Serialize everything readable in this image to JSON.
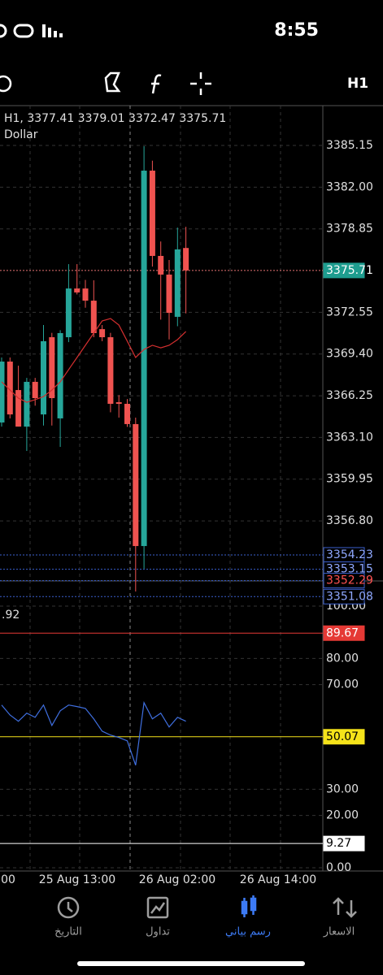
{
  "status_bar": {
    "time": "8:55"
  },
  "toolbar": {
    "timeframe": "H1"
  },
  "chart": {
    "header": "H1, 3377.41 3379.01 3372.47 3375.71",
    "symbol": "Dollar",
    "ylim": [
      3351.16,
      3388.16
    ],
    "yticks": [
      3385.15,
      {
        "value": 3382.0,
        "label": "3382.00"
      },
      3378.85,
      3372.55,
      {
        "value": 3369.4,
        "label": "3369.40"
      },
      3366.25,
      {
        "value": 3363.1,
        "label": "3363.10"
      },
      3359.95,
      {
        "value": 3356.8,
        "label": "3356.80"
      }
    ],
    "up_color": "#26a69a",
    "down_color": "#ef5350",
    "ma_color": "#d32f2f",
    "candles": [
      {
        "open": 3364.23,
        "high": 3369.14,
        "low": 3363.92,
        "close": 3368.83
      },
      {
        "open": 3368.83,
        "high": 3369.14,
        "low": 3364.54,
        "close": 3364.84
      },
      {
        "open": 3366.68,
        "high": 3368.52,
        "low": 3363.92,
        "close": 3363.92
      },
      {
        "open": 3363.92,
        "high": 3367.6,
        "low": 3362.08,
        "close": 3367.3
      },
      {
        "open": 3367.3,
        "high": 3367.6,
        "low": 3365.5,
        "close": 3366.07
      },
      {
        "open": 3364.84,
        "high": 3371.59,
        "low": 3364.0,
        "close": 3370.37
      },
      {
        "open": 3370.67,
        "high": 3371.0,
        "low": 3364.0,
        "close": 3366.07
      },
      {
        "open": 3364.54,
        "high": 3371.2,
        "low": 3362.39,
        "close": 3370.98
      },
      {
        "open": 3370.67,
        "high": 3376.19,
        "low": 3370.3,
        "close": 3374.35
      },
      {
        "open": 3374.35,
        "high": 3376.19,
        "low": 3373.9,
        "close": 3374.05
      },
      {
        "open": 3374.35,
        "high": 3375.0,
        "low": 3372.9,
        "close": 3373.43
      },
      {
        "open": 3373.43,
        "high": 3374.97,
        "low": 3370.67,
        "close": 3370.98
      },
      {
        "open": 3371.28,
        "high": 3371.59,
        "low": 3370.37,
        "close": 3370.67
      },
      {
        "open": 3370.67,
        "high": 3371.0,
        "low": 3365.0,
        "close": 3365.64
      },
      {
        "open": 3365.76,
        "high": 3366.3,
        "low": 3364.6,
        "close": 3365.64
      },
      {
        "open": 3365.64,
        "high": 3366.0,
        "low": 3363.9,
        "close": 3364.11
      },
      {
        "open": 3364.11,
        "high": 3364.6,
        "low": 3351.47,
        "close": 3354.9
      },
      {
        "open": 3354.9,
        "high": 3385.09,
        "low": 3353.19,
        "close": 3383.25
      },
      {
        "open": 3383.25,
        "high": 3384.0,
        "low": 3376.0,
        "close": 3376.81
      },
      {
        "open": 3376.81,
        "high": 3377.9,
        "low": 3372.0,
        "close": 3375.4
      },
      {
        "open": 3375.4,
        "high": 3376.5,
        "low": 3370.5,
        "close": 3372.51
      },
      {
        "open": 3372.21,
        "high": 3378.95,
        "low": 3371.5,
        "close": 3377.3
      },
      {
        "open": 3377.41,
        "high": 3379.01,
        "low": 3372.47,
        "close": 3375.71
      }
    ],
    "ma": [
      3367.3,
      3366.68,
      3366.07,
      3365.76,
      3365.95,
      3366.19,
      3366.68,
      3367.3,
      3368.22,
      3369.14,
      3370.06,
      3370.98,
      3371.9,
      3372.08,
      3371.59,
      3370.37,
      3369.14,
      3369.75,
      3370.06,
      3369.87,
      3370.06,
      3370.49,
      3371.1
    ],
    "levels": [
      {
        "value": 3375.71,
        "line_color": "#e57373",
        "box_color": "#1e9d8f",
        "filled": true,
        "text_color": "#ffffff"
      },
      {
        "value": 3354.23,
        "line_color": "#3a5fcd",
        "box_color": "#3a5fcd",
        "filled": false,
        "text_color": "#8fa8ff"
      },
      {
        "value": 3353.15,
        "line_color": "#3a5fcd",
        "box_color": "#3a5fcd",
        "filled": false,
        "text_color": "#8fa8ff"
      },
      {
        "value": 3352.29,
        "line_color": "#3a5fcd",
        "box_color": "#3a5fcd",
        "filled": false,
        "text_color": "#ff5252"
      },
      {
        "value": 3351.08,
        "line_color": "#3a5fcd",
        "box_color": "#3a5fcd",
        "filled": false,
        "text_color": "#8fa8ff"
      }
    ]
  },
  "indicator": {
    "label": ".92",
    "ylim": [
      0,
      100
    ],
    "yticks": [
      {
        "value": 100,
        "label": "100.00"
      },
      {
        "value": 80,
        "label": "80.00"
      },
      {
        "value": 70,
        "label": "70.00"
      },
      {
        "value": 30,
        "label": "30.00"
      },
      {
        "value": 20,
        "label": "20.00"
      },
      {
        "value": 0,
        "label": "0.00"
      }
    ],
    "line_color": "#3f6fe0",
    "values": [
      62.2,
      58.4,
      56.0,
      59.1,
      57.5,
      62.2,
      54.4,
      60.0,
      62.2,
      61.6,
      60.9,
      56.9,
      52.2,
      50.7,
      49.8,
      48.5,
      39.2,
      63.1,
      56.9,
      59.1,
      53.8,
      57.5,
      56.0
    ],
    "levels": [
      {
        "value": 89.67,
        "line_color": "#e53935",
        "box_color": "#e53935",
        "text_color": "#ffffff"
      },
      {
        "value": 50.07,
        "line_color": "#f5e31a",
        "box_color": "#f5e31a",
        "text_color": "#000000"
      },
      {
        "value": 9.27,
        "line_color": "#ffffff",
        "box_color": "#ffffff",
        "text_color": "#000000"
      }
    ]
  },
  "x_labels": [
    "00",
    "25 Aug 13:00",
    "26 Aug 02:00",
    "26 Aug 14:00"
  ],
  "nav": [
    "التاريخ",
    "تداول",
    "رسم بياني",
    "الاسعار"
  ]
}
